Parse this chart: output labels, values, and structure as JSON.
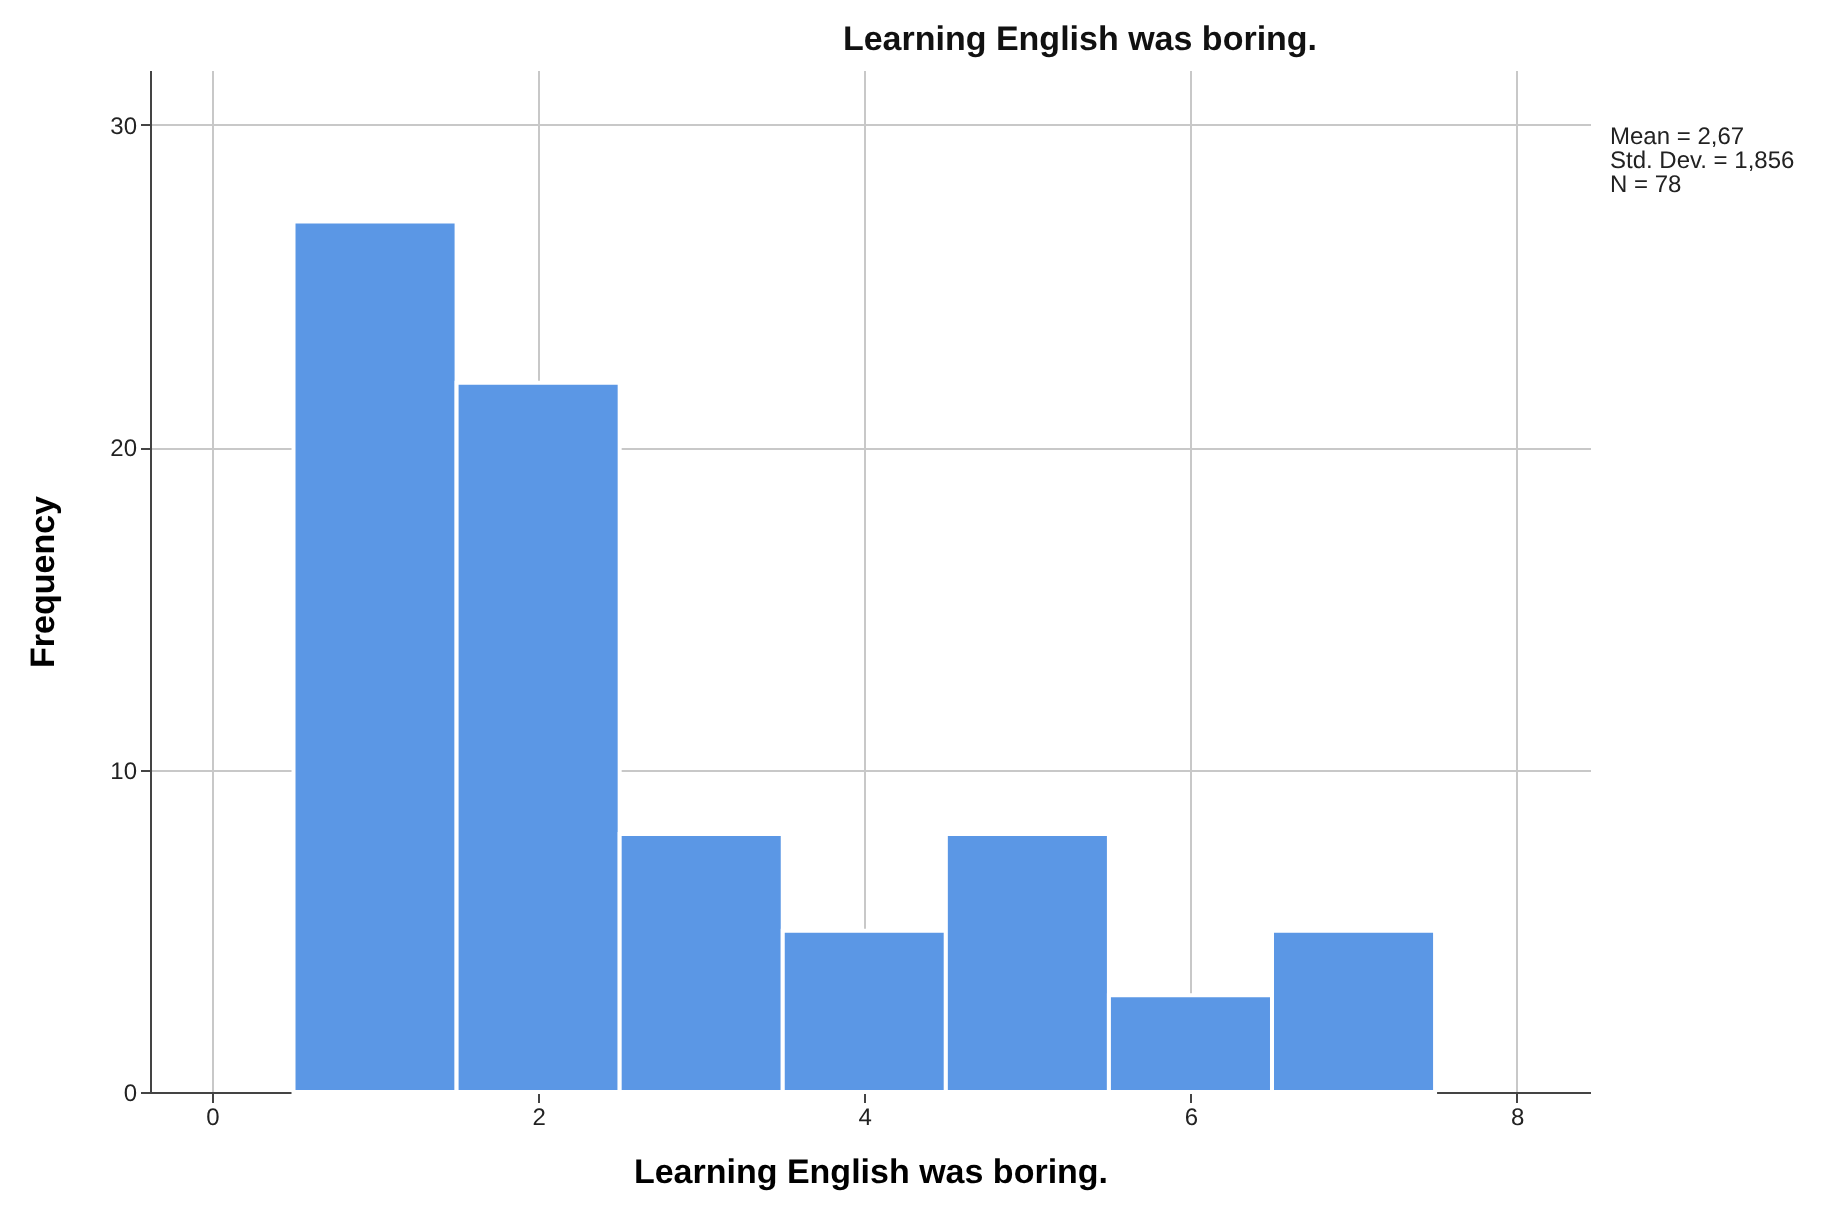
{
  "chart_data": {
    "type": "histogram",
    "title": "Learning English was boring.",
    "xlabel": "Learning English was boring.",
    "ylabel": "Frequency",
    "bins": [
      0.5,
      1.5,
      2.5,
      3.5,
      4.5,
      5.5,
      6.5,
      7.5
    ],
    "values": [
      27,
      22,
      8,
      5,
      8,
      3,
      5
    ],
    "color": "#5b97e5",
    "xlim": [
      -0.38,
      8.45
    ],
    "xticks": [
      0,
      2,
      4,
      6,
      8
    ],
    "ylim": [
      0,
      31.7
    ],
    "yticks": [
      0,
      10,
      20,
      30
    ],
    "grid": true,
    "annotations": [
      "Mean = 2,67",
      "Std. Dev. = 1,856",
      "N = 78"
    ]
  }
}
